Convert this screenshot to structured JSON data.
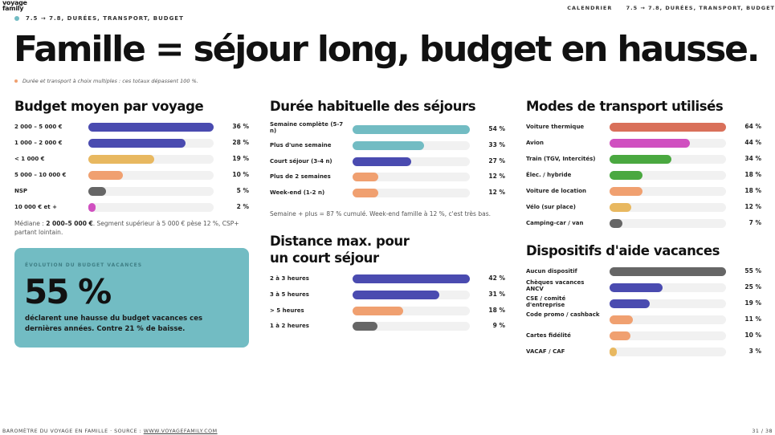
{
  "brand": {
    "logo_line1": "voyage",
    "logo_line2": "family"
  },
  "header": {
    "nav_label": "CALENDRIER",
    "nav_range": "7.5 → 7.8, DURÉES, TRANSPORT, BUDGET",
    "breadcrumb": "7.5 → 7.8, DURÉES, TRANSPORT, BUDGET"
  },
  "headline": "Famille = séjour long, budget en hausse.",
  "note": "Durée et transport à choix multiples : ces totaux dépassent 100 %.",
  "budget": {
    "title": "Budget moyen par voyage",
    "items": [
      {
        "label": "2 000 – 5 000 €",
        "pct": "36 %",
        "value": 36,
        "color": "#4a4bb0"
      },
      {
        "label": "1 000 – 2 000 €",
        "pct": "28 %",
        "value": 28,
        "color": "#4a4bb0"
      },
      {
        "label": "< 1 000 €",
        "pct": "19 %",
        "value": 19,
        "color": "#e8b860"
      },
      {
        "label": "5 000 – 10 000 €",
        "pct": "10 %",
        "value": 10,
        "color": "#f0a070"
      },
      {
        "label": "NSP",
        "pct": "5 %",
        "value": 5,
        "color": "#666666"
      },
      {
        "label": "10 000 € et +",
        "pct": "2 %",
        "value": 2,
        "color": "#d050c0"
      }
    ],
    "caption_pre": "Médiane : ",
    "caption_bold": "2 000–5 000 €",
    "caption_post": ". Segment supérieur à 5 000 € pèse 12 %, CSP+ partant lointain."
  },
  "card": {
    "kicker": "ÉVOLUTION DU BUDGET VACANCES",
    "big": "55 %",
    "desc": "déclarent une hausse du budget vacances ces dernières années. Contre 21 % de baisse."
  },
  "duration": {
    "title": "Durée habituelle des séjours",
    "items": [
      {
        "label": "Semaine complète (5-7 n)",
        "pct": "54 %",
        "value": 54,
        "color": "#72bcc3"
      },
      {
        "label": "Plus d'une semaine",
        "pct": "33 %",
        "value": 33,
        "color": "#72bcc3"
      },
      {
        "label": "Court séjour (3-4 n)",
        "pct": "27 %",
        "value": 27,
        "color": "#4a4bb0"
      },
      {
        "label": "Plus de 2 semaines",
        "pct": "12 %",
        "value": 12,
        "color": "#f0a070"
      },
      {
        "label": "Week-end (1-2 n)",
        "pct": "12 %",
        "value": 12,
        "color": "#f0a070"
      }
    ],
    "caption": "Semaine + plus = 87 % cumulé. Week-end famille à 12 %, c'est très bas."
  },
  "distance": {
    "title_line1": "Distance max. pour",
    "title_line2": "un court séjour",
    "items": [
      {
        "label": "2 à 3 heures",
        "pct": "42 %",
        "value": 42,
        "color": "#4a4bb0"
      },
      {
        "label": "3 à 5 heures",
        "pct": "31 %",
        "value": 31,
        "color": "#4a4bb0"
      },
      {
        "label": "> 5 heures",
        "pct": "18 %",
        "value": 18,
        "color": "#f0a070"
      },
      {
        "label": "1 à 2 heures",
        "pct": "9 %",
        "value": 9,
        "color": "#666666"
      }
    ]
  },
  "transport": {
    "title": "Modes de transport utilisés",
    "items": [
      {
        "label": "Voiture thermique",
        "pct": "64 %",
        "value": 64,
        "color": "#d9705a"
      },
      {
        "label": "Avion",
        "pct": "44 %",
        "value": 44,
        "color": "#d050c0"
      },
      {
        "label": "Train (TGV, Intercités)",
        "pct": "34 %",
        "value": 34,
        "color": "#4aa840"
      },
      {
        "label": "Élec. / hybride",
        "pct": "18 %",
        "value": 18,
        "color": "#4aa840"
      },
      {
        "label": "Voiture de location",
        "pct": "18 %",
        "value": 18,
        "color": "#f0a070"
      },
      {
        "label": "Vélo (sur place)",
        "pct": "12 %",
        "value": 12,
        "color": "#e8b860"
      },
      {
        "label": "Camping-car / van",
        "pct": "7 %",
        "value": 7,
        "color": "#666666"
      }
    ]
  },
  "aid": {
    "title": "Dispositifs d'aide vacances",
    "items": [
      {
        "label": "Aucun dispositif",
        "pct": "55 %",
        "value": 55,
        "color": "#666666"
      },
      {
        "label": "Chèques vacances ANCV",
        "pct": "25 %",
        "value": 25,
        "color": "#4a4bb0"
      },
      {
        "label": "CSE / comité d'entreprise",
        "pct": "19 %",
        "value": 19,
        "color": "#4a4bb0"
      },
      {
        "label": "Code promo / cashback",
        "pct": "11 %",
        "value": 11,
        "color": "#f0a070"
      },
      {
        "label": "Cartes fidélité",
        "pct": "10 %",
        "value": 10,
        "color": "#f0a070"
      },
      {
        "label": "VACAF / CAF",
        "pct": "3 %",
        "value": 3,
        "color": "#e8b860"
      }
    ]
  },
  "footer": {
    "left_pre": "BAROMÈTRE DU VOYAGE EN FAMILLE · SOURCE : ",
    "left_link": "WWW.VOYAGEFAMILY.COM",
    "page": "31 / 38"
  }
}
